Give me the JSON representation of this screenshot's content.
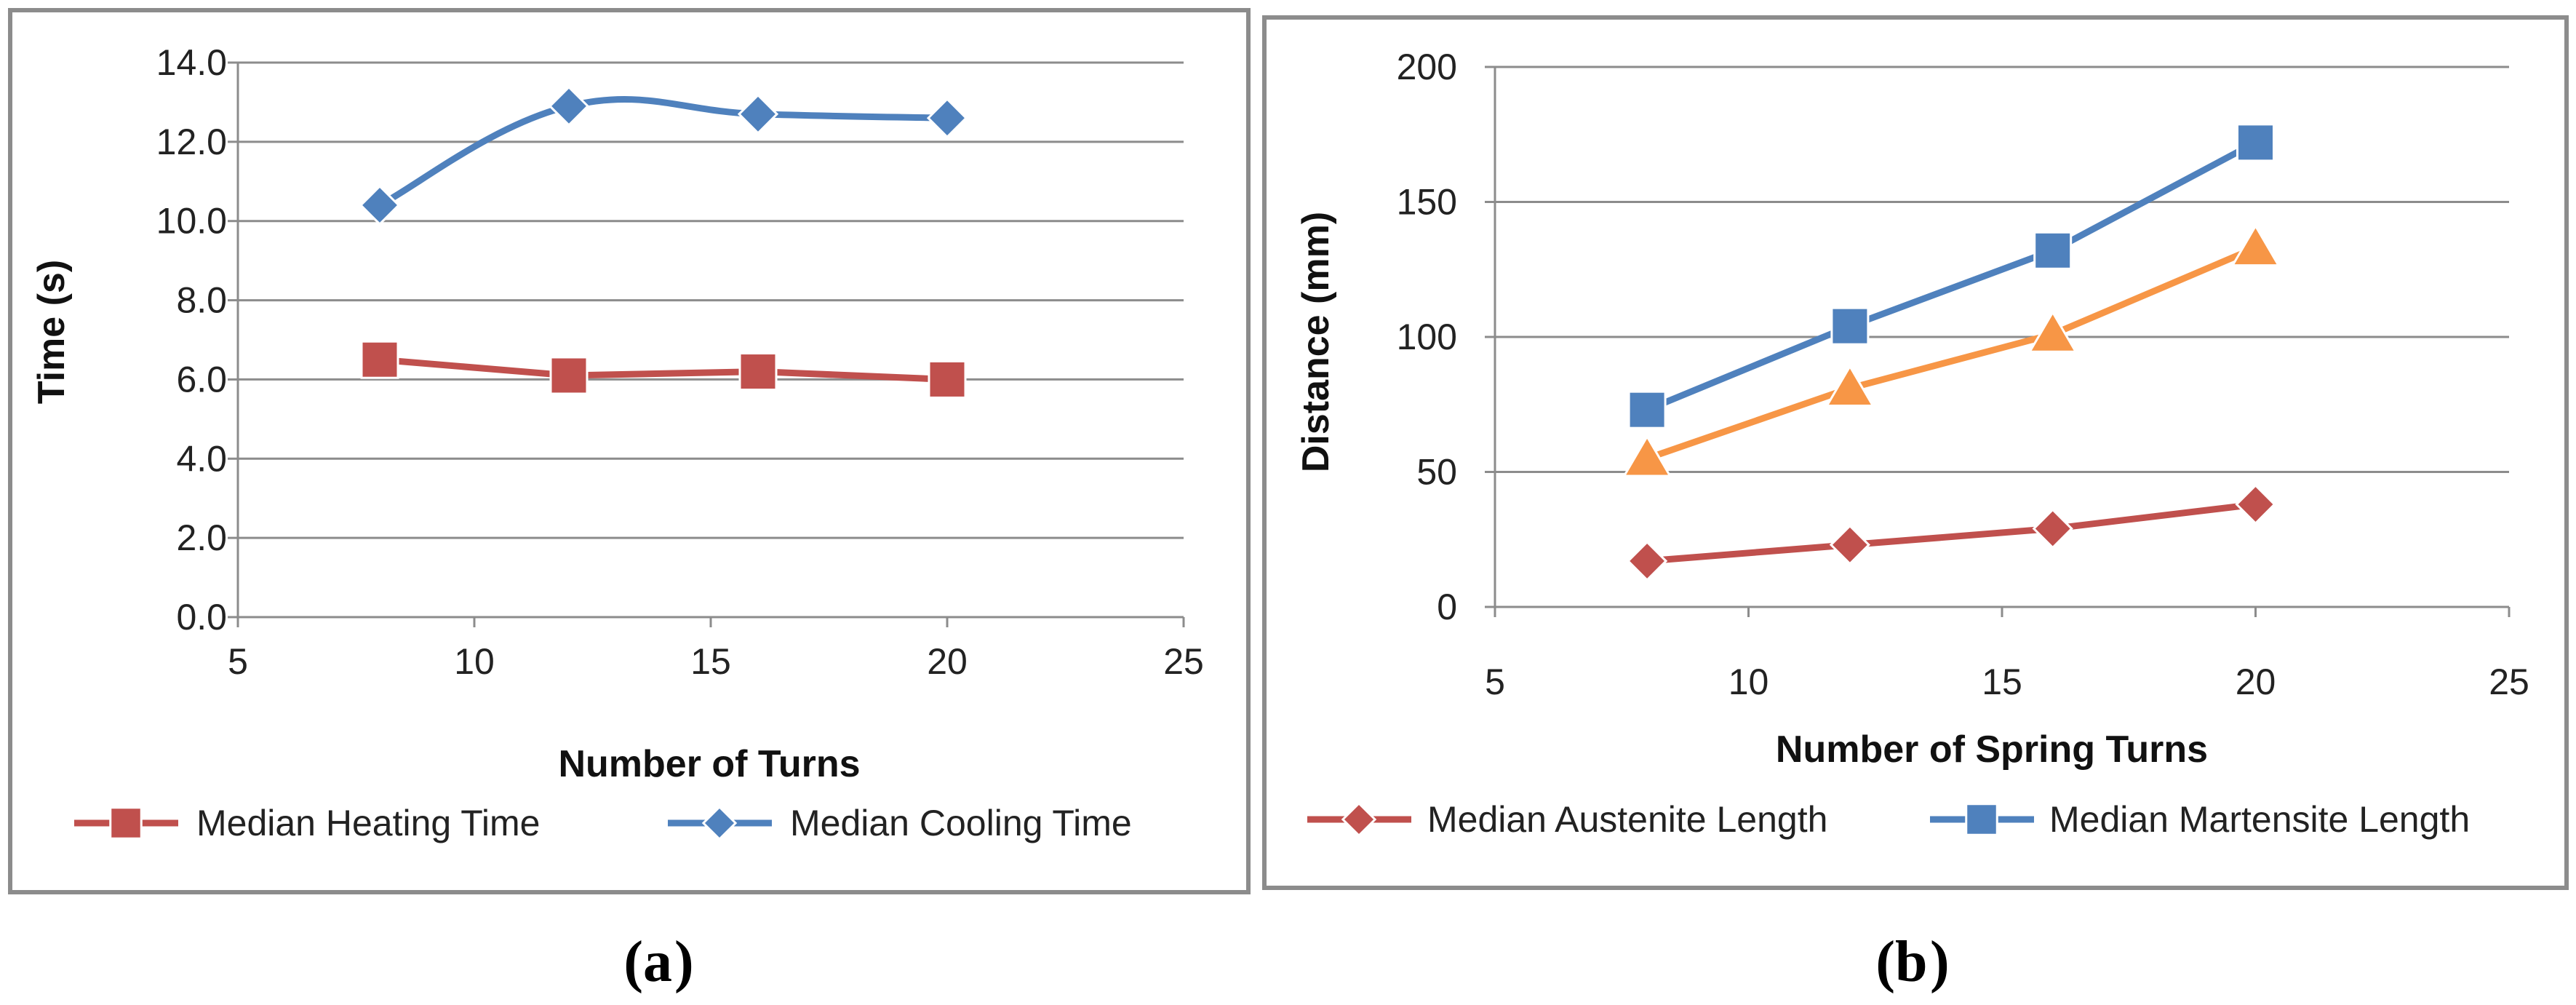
{
  "chart_data": [
    {
      "type": "line",
      "panel_label": "a",
      "caption_open": "(",
      "caption_close": ")",
      "xlabel": "Number of Turns",
      "ylabel": "Time (s)",
      "xlim": [
        5,
        25
      ],
      "ylim": [
        0,
        14
      ],
      "xticks": [
        5,
        10,
        15,
        20,
        25
      ],
      "yticks": [
        0,
        2,
        4,
        6,
        8,
        10,
        12,
        14
      ],
      "ytick_labels": [
        "0.0",
        "2.0",
        "4.0",
        "6.0",
        "8.0",
        "10.0",
        "12.0",
        "14.0"
      ],
      "xtick_labels": [
        "5",
        "10",
        "15",
        "20",
        "25"
      ],
      "grid": "horizontal",
      "legend_position": "bottom",
      "series": [
        {
          "name": "Median Heating Time",
          "color": "#c0504d",
          "marker": "square",
          "smooth": false,
          "x": [
            8,
            12,
            16,
            20
          ],
          "y": [
            6.5,
            6.1,
            6.2,
            6.0
          ]
        },
        {
          "name": "Median Cooling Time",
          "color": "#4f81bd",
          "marker": "diamond",
          "smooth": true,
          "x": [
            8,
            12,
            16,
            20
          ],
          "y": [
            10.4,
            12.9,
            12.7,
            12.6
          ]
        }
      ]
    },
    {
      "type": "line",
      "panel_label": "b",
      "caption_open": "(",
      "caption_close": ")",
      "xlabel": "Number of Spring Turns",
      "ylabel": "Distance (mm)",
      "xlim": [
        5,
        25
      ],
      "ylim": [
        0,
        200
      ],
      "xticks": [
        5,
        10,
        15,
        20,
        25
      ],
      "yticks": [
        0,
        50,
        100,
        150,
        200
      ],
      "ytick_labels": [
        "0",
        "50",
        "100",
        "150",
        "200"
      ],
      "xtick_labels": [
        "5",
        "10",
        "15",
        "20",
        "25"
      ],
      "grid": "horizontal",
      "legend_position": "bottom",
      "series": [
        {
          "name": "Median Austenite Length",
          "color": "#c0504d",
          "marker": "diamond",
          "smooth": false,
          "x": [
            8,
            12,
            16,
            20
          ],
          "y": [
            17,
            23,
            29,
            38
          ]
        },
        {
          "name": "Median Martensite Length",
          "color": "#4f81bd",
          "marker": "square",
          "smooth": false,
          "x": [
            8,
            12,
            16,
            20
          ],
          "y": [
            73,
            104,
            132,
            172
          ]
        },
        {
          "name": "",
          "color": "#f79646",
          "marker": "triangle",
          "smooth": false,
          "x": [
            8,
            12,
            16,
            20
          ],
          "y": [
            55,
            81,
            101,
            133
          ]
        }
      ]
    }
  ]
}
